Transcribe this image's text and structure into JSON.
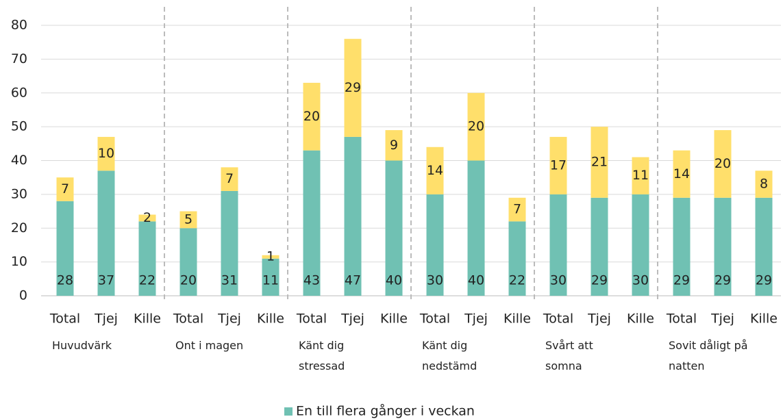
{
  "chart_data": {
    "type": "stacked_bar",
    "categories": [
      "Total",
      "Tjej",
      "Kille",
      "Total",
      "Tjej",
      "Kille",
      "Total",
      "Tjej",
      "Kille",
      "Total",
      "Tjej",
      "Kille",
      "Total",
      "Tjej",
      "Kille",
      "Total",
      "Tjej",
      "Kille"
    ],
    "groups": [
      [
        "Huvudvärk"
      ],
      [
        "Ont i magen"
      ],
      [
        "Känt dig",
        "stressad"
      ],
      [
        "Känt dig",
        "nedstämd"
      ],
      [
        "Svårt att",
        "somna"
      ],
      [
        "Sovit dåligt på",
        "natten"
      ]
    ],
    "series": [
      {
        "name": "En till flera gånger i veckan",
        "color": "#70c1b3",
        "values": [
          28,
          37,
          22,
          20,
          31,
          11,
          43,
          47,
          40,
          30,
          40,
          22,
          30,
          29,
          30,
          29,
          29,
          29
        ]
      },
      {
        "color": "#ffdf6b",
        "values": [
          7,
          10,
          2,
          5,
          7,
          1,
          20,
          29,
          9,
          14,
          20,
          7,
          17,
          21,
          11,
          14,
          20,
          8
        ]
      }
    ],
    "ylim": [
      0,
      80
    ],
    "yticks": [
      0,
      10,
      20,
      30,
      40,
      50,
      60,
      70,
      80
    ],
    "grid": true
  }
}
